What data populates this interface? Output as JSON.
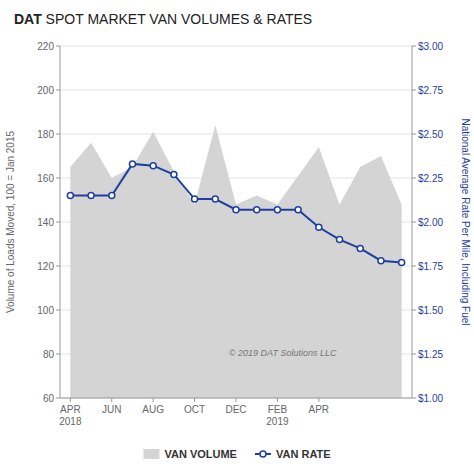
{
  "chart_data": {
    "type": "line",
    "title": "DAT SPOT MARKET VAN VOLUMES & RATES",
    "ylabel": "Volume of Loads Moved, 100 = Jan 2015",
    "y2label": "National Average Rate Per Mile, Including Fuel",
    "annotations": [
      "© 2019 DAT Solutions LLC"
    ],
    "categories": [
      "APR\n2018",
      null,
      "JUN",
      null,
      "AUG",
      null,
      "OCT",
      null,
      "DEC",
      null,
      "FEB\n2019",
      null,
      "APR",
      null,
      null,
      null,
      null
    ],
    "series": [
      {
        "name": "VAN VOLUME",
        "type": "area",
        "color": "#d4d4d4",
        "values": [
          165,
          176,
          160,
          165,
          181,
          163,
          148,
          184,
          148,
          152,
          148,
          161,
          174,
          148,
          165,
          170,
          148
        ]
      },
      {
        "name": "VAN RATE",
        "type": "line",
        "axis": "y2",
        "color": "#1e3fa0",
        "marker": "circle",
        "values": [
          2.15,
          2.15,
          2.15,
          2.33,
          2.32,
          2.27,
          2.13,
          2.13,
          2.07,
          2.07,
          2.07,
          2.07,
          1.97,
          1.9,
          1.85,
          1.78,
          1.77
        ]
      }
    ],
    "ylim": [
      60,
      220
    ],
    "yticks": [
      60,
      80,
      100,
      120,
      140,
      160,
      180,
      200,
      220
    ],
    "y2lim": [
      1.0,
      3.0
    ],
    "y2ticks": [
      {
        "value": 1.0,
        "label": "$1.00"
      },
      {
        "value": 1.25,
        "label": "$1.25"
      },
      {
        "value": 1.5,
        "label": "$1.50"
      },
      {
        "value": 1.75,
        "label": "$1.75"
      },
      {
        "value": 2.0,
        "label": "$2.00"
      },
      {
        "value": 2.25,
        "label": "$2.25"
      },
      {
        "value": 2.5,
        "label": "$2.50"
      },
      {
        "value": 2.75,
        "label": "$2.75"
      },
      {
        "value": 3.0,
        "label": "$3.00"
      }
    ],
    "grid": true,
    "legend": "bottom"
  }
}
